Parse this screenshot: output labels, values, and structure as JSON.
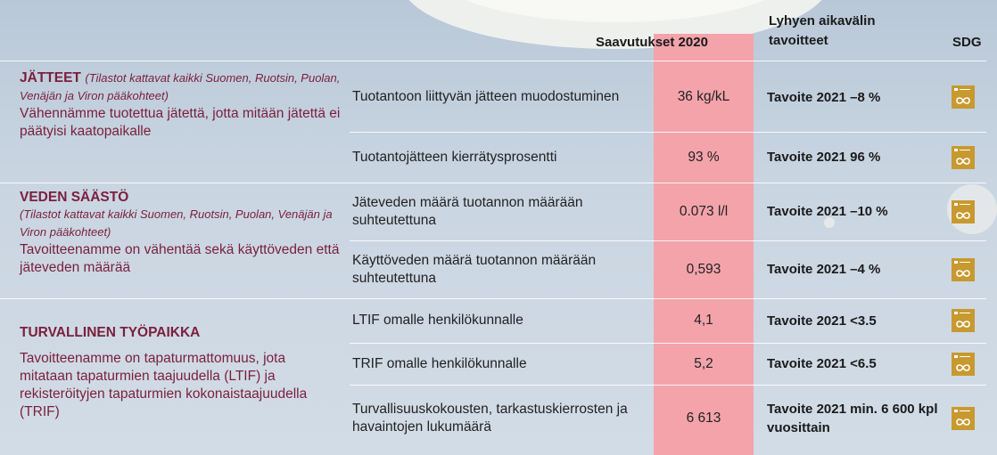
{
  "header": {
    "achievements": "Saavutukset 2020",
    "targets": "Lyhyen aikavälin tavoitteet",
    "sdg": "SDG"
  },
  "sections": [
    {
      "title": "JÄTTEET",
      "note": "(Tilastot kattavat kaikki Suomen, Ruotsin, Puolan, Venäjän ja Viron pääkohteet)",
      "description": "Vähennämme tuotettua jätettä, jotta mitään jätettä ei päätyisi kaatopaikalle",
      "rows": [
        {
          "metric": "Tuotantoon liittyvän jätteen muodostuminen",
          "value": "36 kg/kL",
          "target": "Tavoite 2021 –8 %"
        },
        {
          "metric": "Tuotantojätteen kierrätysprosentti",
          "value": "93 %",
          "target": "Tavoite 2021 96 %"
        }
      ]
    },
    {
      "title": "VEDEN SÄÄSTÖ",
      "note": "(Tilastot kattavat kaikki Suomen, Ruotsin, Puolan, Venäjän ja Viron pääkohteet)",
      "description": "Tavoitteenamme on vähentää sekä käyttöveden että jäteveden määrää",
      "rows": [
        {
          "metric": "Jäteveden määrä tuotannon määrään suhteutettuna",
          "value": "0.073 l/l",
          "target": "Tavoite 2021 –10 %"
        },
        {
          "metric": "Käyttöveden määrä tuotannon määrään suhteutettuna",
          "value": "0,593",
          "target": "Tavoite 2021 –4 %"
        }
      ]
    },
    {
      "title": "TURVALLINEN TYÖPAIKKA",
      "description": "Tavoitteenamme on tapaturmattomuus, jota mitataan tapaturmien taajuudella (LTIF) ja rekisteröityjen tapaturmien kokonaistaajuudella (TRIF)",
      "rows": [
        {
          "metric": "LTIF omalle henkilökunnalle",
          "value": "4,1",
          "target": "Tavoite 2021 <3.5"
        },
        {
          "metric": "TRIF omalle henkilökunnalle",
          "value": "5,2",
          "target": "Tavoite 2021 <6.5"
        },
        {
          "metric": "Turvallisuuskokousten, tarkastuskierrosten ja havaintojen lukumäärä",
          "value": "6 613",
          "target": "Tavoite 2021 min. 6 600 kpl vuosittain"
        }
      ]
    }
  ]
}
